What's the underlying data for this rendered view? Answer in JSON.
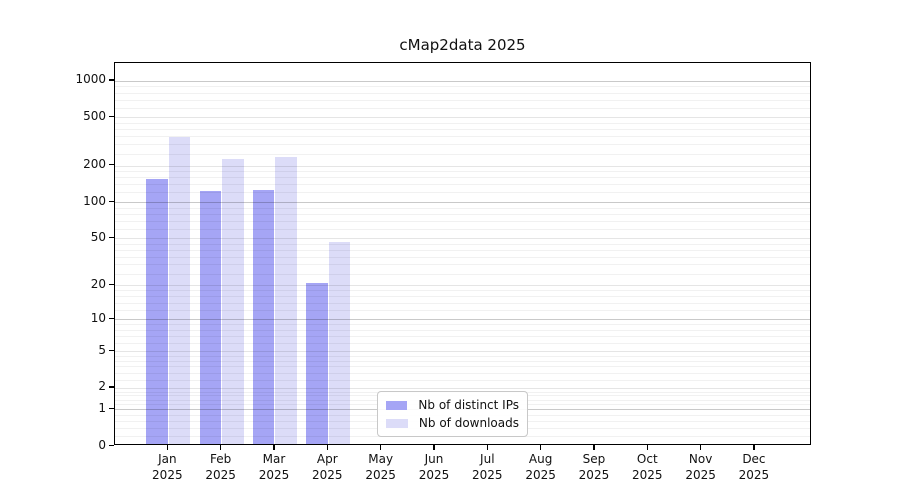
{
  "figure": {
    "title": "cMap2data 2025"
  },
  "chart_data": {
    "type": "bar",
    "title": "cMap2data 2025",
    "categories": [
      "Jan",
      "Feb",
      "Mar",
      "Apr",
      "May",
      "Jun",
      "Jul",
      "Aug",
      "Sep",
      "Oct",
      "Nov",
      "Dec"
    ],
    "category_year": "2025",
    "series": [
      {
        "name": "Nb of distinct IPs",
        "color": "#a5a5f5",
        "values": [
          150,
          119,
          122,
          20,
          0,
          0,
          0,
          0,
          0,
          0,
          0,
          0
        ]
      },
      {
        "name": "Nb of downloads",
        "color": "#dcdcf8",
        "values": [
          335,
          220,
          228,
          45,
          0,
          0,
          0,
          0,
          0,
          0,
          0,
          0
        ]
      }
    ],
    "xlabel": "",
    "ylabel": "",
    "yscale": "log1p",
    "yticks": [
      0,
      1,
      2,
      5,
      10,
      20,
      50,
      100,
      200,
      500,
      1000
    ],
    "ylim": [
      0,
      1400
    ],
    "grid": "on",
    "grid_above_bars": true,
    "legend_position": "lower center",
    "legend_labels": [
      "Nb of distinct IPs",
      "Nb of downloads"
    ]
  },
  "colors": {
    "bar_distinct_ips": "#a5a5f5",
    "bar_downloads": "#dcdcf8",
    "grid_decade": "rgba(0,0,0,0.21)",
    "grid_labeled": "rgba(0,0,0,0.10)",
    "grid_minor": "rgba(0,0,0,0.055)",
    "axis": "#000000",
    "text": "#111111",
    "legend_border": "#c8c8c8"
  }
}
